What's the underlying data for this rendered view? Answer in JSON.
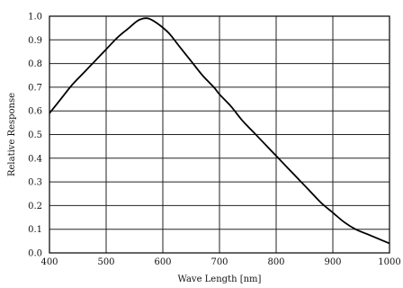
{
  "chart_data": {
    "type": "line",
    "title": "",
    "xlabel": "Wave Length [nm]",
    "ylabel": "Relative Response",
    "xlim": [
      400,
      1000
    ],
    "ylim": [
      0,
      1.0
    ],
    "x_ticks": [
      "400",
      "500",
      "600",
      "700",
      "800",
      "900",
      "1000"
    ],
    "y_ticks": [
      "0.0",
      "0.1",
      "0.2",
      "0.3",
      "0.4",
      "0.5",
      "0.6",
      "0.7",
      "0.8",
      "0.9",
      "1.0"
    ],
    "grid": true,
    "legend": "none",
    "series": [
      {
        "x": [
          400,
          420,
          440,
          460,
          480,
          500,
          520,
          540,
          555,
          565,
          575,
          590,
          610,
          630,
          650,
          670,
          690,
          700,
          720,
          740,
          760,
          780,
          800,
          820,
          840,
          860,
          880,
          900,
          920,
          940,
          960,
          980,
          1000
        ],
        "y": [
          0.59,
          0.65,
          0.71,
          0.76,
          0.81,
          0.86,
          0.91,
          0.95,
          0.98,
          0.99,
          0.99,
          0.97,
          0.93,
          0.87,
          0.81,
          0.75,
          0.7,
          0.67,
          0.62,
          0.56,
          0.51,
          0.46,
          0.41,
          0.36,
          0.31,
          0.26,
          0.21,
          0.17,
          0.13,
          0.1,
          0.08,
          0.06,
          0.04
        ]
      }
    ],
    "colors": {
      "line": "#000000",
      "grid": "#222222",
      "axis": "#000000"
    }
  }
}
